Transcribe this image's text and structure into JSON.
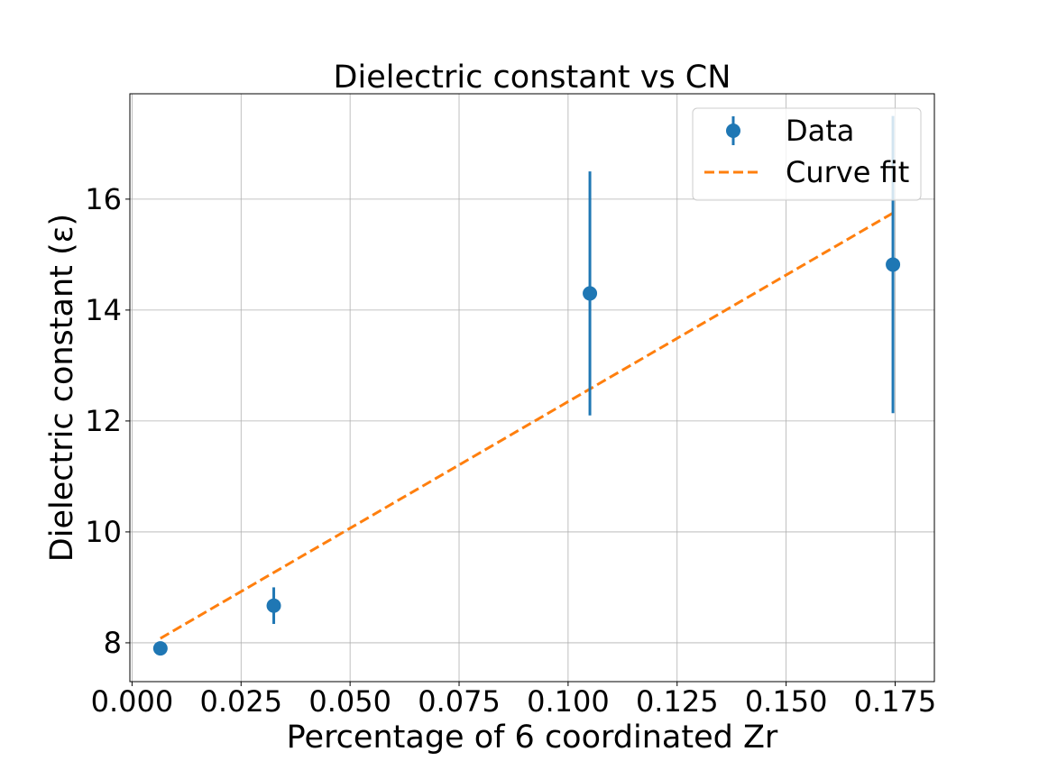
{
  "chart_data": {
    "type": "scatter",
    "title": "Dielectric constant vs CN",
    "xlabel": "Percentage of 6 coordinated Zr",
    "ylabel": "Dielectric constant (ε)",
    "xlim": [
      -0.0005,
      0.184
    ],
    "ylim": [
      7.3,
      17.9
    ],
    "xticks": [
      0.0,
      0.025,
      0.05,
      0.075,
      0.1,
      0.125,
      0.15,
      0.175
    ],
    "xtick_labels": [
      "0.000",
      "0.025",
      "0.050",
      "0.075",
      "0.100",
      "0.125",
      "0.150",
      "0.175"
    ],
    "yticks": [
      8,
      10,
      12,
      14,
      16
    ],
    "ytick_labels": [
      "8",
      "10",
      "12",
      "14",
      "16"
    ],
    "grid": true,
    "legend_position": "top-right",
    "series": [
      {
        "name": "Data",
        "kind": "errorbar",
        "color": "#1f77b4",
        "x": [
          0.0065,
          0.0325,
          0.105,
          0.1745
        ],
        "y": [
          7.9,
          8.67,
          14.3,
          14.82
        ],
        "yerr": [
          0.12,
          0.33,
          2.2,
          2.68
        ]
      },
      {
        "name": "Curve fit",
        "kind": "line",
        "style": "dashed",
        "color": "#ff7f0e",
        "x": [
          0.0065,
          0.1745
        ],
        "y": [
          8.08,
          15.75
        ]
      }
    ]
  }
}
